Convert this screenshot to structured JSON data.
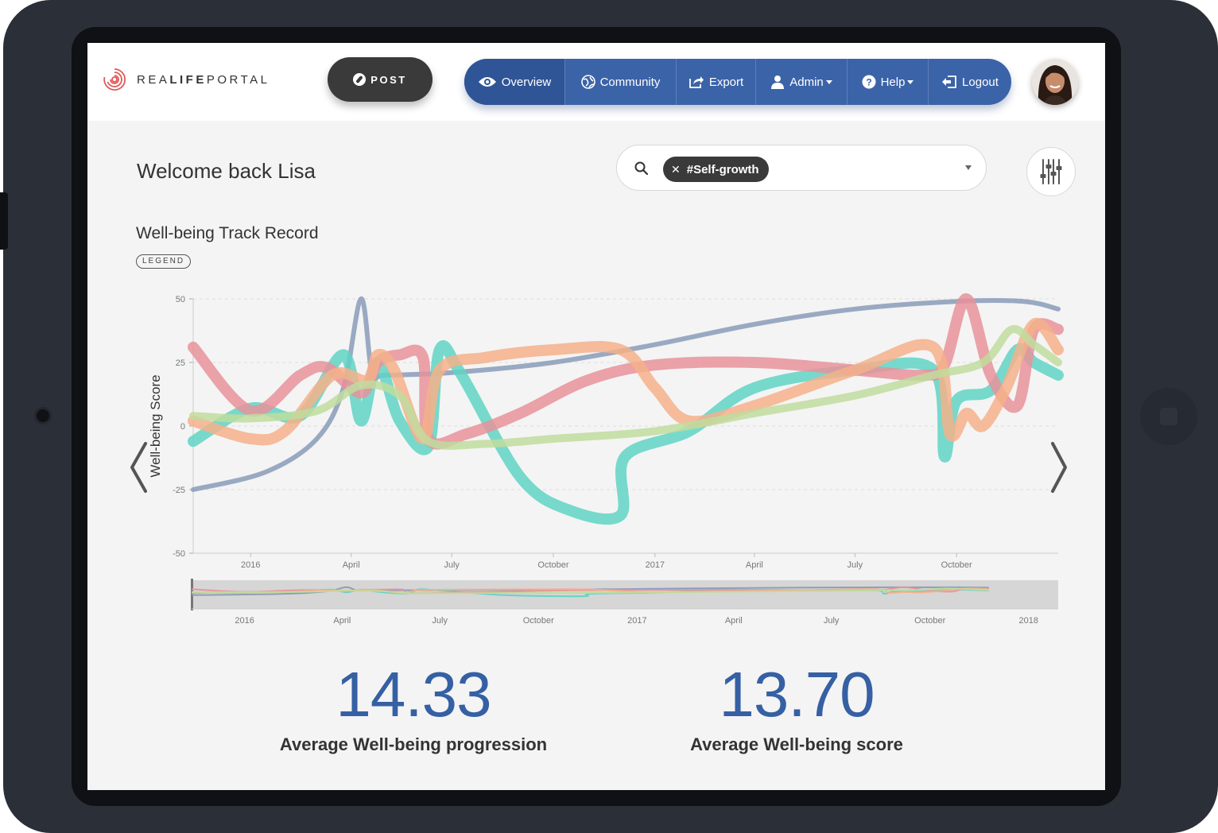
{
  "app": {
    "logo_text_1": "REA",
    "logo_text_2": "LIFE",
    "logo_text_3": "PORTAL",
    "post_label": "POST"
  },
  "nav": [
    {
      "label": "Overview",
      "icon": "eye-icon",
      "dropdown": false,
      "active": true
    },
    {
      "label": "Community",
      "icon": "globe-icon",
      "dropdown": false,
      "active": false
    },
    {
      "label": "Export",
      "icon": "export-icon",
      "dropdown": false,
      "active": false
    },
    {
      "label": "Admin",
      "icon": "user-icon",
      "dropdown": true,
      "active": false
    },
    {
      "label": "Help",
      "icon": "help-icon",
      "dropdown": true,
      "active": false
    },
    {
      "label": "Logout",
      "icon": "logout-icon",
      "dropdown": false,
      "active": false
    }
  ],
  "welcome": "Welcome back Lisa",
  "search": {
    "chip_label": "#Self-growth"
  },
  "chart_section": {
    "title": "Well-being Track Record",
    "legend_label": "LEGEND"
  },
  "chart_data": {
    "type": "line",
    "ylabel": "Well-being Score",
    "xlabel": "",
    "ylim": [
      -50,
      50
    ],
    "y_ticks": [
      50,
      25,
      0,
      -25,
      -50
    ],
    "x_tick_labels": [
      "2016",
      "April",
      "July",
      "October",
      "2017",
      "April",
      "July",
      "October"
    ],
    "navigator_tick_labels": [
      "2016",
      "April",
      "July",
      "October",
      "2017",
      "April",
      "July",
      "October",
      "2018"
    ],
    "grid": "horizontal dashed",
    "series": [
      {
        "color": "#8a9bb8",
        "x": [
          "2015-11-10",
          "2016-01-15",
          "2016-03-01",
          "2016-03-25",
          "2016-04-10",
          "2016-04-20",
          "2016-05-01",
          "2016-07-01",
          "2016-10-01",
          "2017-01-01",
          "2017-04-01",
          "2017-07-01",
          "2017-10-01",
          "2017-12-01",
          "2018-01-01"
        ],
        "y": [
          -25,
          -18,
          -5,
          15,
          50,
          20,
          20,
          21,
          25,
          32,
          40,
          46,
          49,
          49,
          46
        ]
      },
      {
        "color": "#5fd3c4",
        "x": [
          "2015-11-10",
          "2016-01-01",
          "2016-02-15",
          "2016-03-25",
          "2016-04-10",
          "2016-04-25",
          "2016-05-15",
          "2016-06-10",
          "2016-06-20",
          "2016-07-10",
          "2016-09-01",
          "2016-10-15",
          "2016-12-01",
          "2016-12-05",
          "2017-02-01",
          "2017-04-01",
          "2017-07-01",
          "2017-09-10",
          "2017-09-20",
          "2017-10-01",
          "2017-11-01",
          "2017-11-25",
          "2017-12-10",
          "2018-01-01"
        ],
        "y": [
          -6,
          7,
          4,
          28,
          2,
          25,
          2,
          -8,
          30,
          20,
          -20,
          -33,
          -35,
          -12,
          -2,
          15,
          22,
          22,
          -12,
          10,
          14,
          30,
          25,
          20
        ]
      },
      {
        "color": "#e8929a",
        "x": [
          "2015-11-10",
          "2016-01-01",
          "2016-02-15",
          "2016-03-10",
          "2016-04-10",
          "2016-04-25",
          "2016-05-15",
          "2016-06-05",
          "2016-06-10",
          "2016-07-15",
          "2016-09-01",
          "2016-11-01",
          "2017-01-01",
          "2017-04-01",
          "2017-07-01",
          "2017-09-01",
          "2017-09-20",
          "2017-10-10",
          "2017-11-01",
          "2017-11-25",
          "2017-12-10",
          "2018-01-01"
        ],
        "y": [
          31,
          6,
          20,
          23,
          13,
          25,
          28,
          27,
          -5,
          -3,
          5,
          18,
          24,
          25,
          22,
          20,
          24,
          50,
          20,
          8,
          38,
          38
        ]
      },
      {
        "color": "#f5b08a",
        "x": [
          "2015-11-10",
          "2016-01-01",
          "2016-02-01",
          "2016-03-15",
          "2016-04-15",
          "2016-04-25",
          "2016-05-10",
          "2016-06-05",
          "2016-06-20",
          "2016-08-01",
          "2016-10-01",
          "2016-12-01",
          "2017-01-01",
          "2017-02-01",
          "2017-04-01",
          "2017-07-01",
          "2017-09-10",
          "2017-09-25",
          "2017-10-10",
          "2017-10-25",
          "2017-11-15",
          "2017-12-10",
          "2018-01-01"
        ],
        "y": [
          2,
          -5,
          -2,
          20,
          18,
          28,
          22,
          -5,
          22,
          27,
          30,
          30,
          15,
          2,
          8,
          22,
          31,
          -3,
          5,
          0,
          15,
          40,
          30
        ]
      },
      {
        "color": "#bfdc9e",
        "x": [
          "2015-11-10",
          "2016-01-01",
          "2016-03-01",
          "2016-04-10",
          "2016-05-15",
          "2016-06-10",
          "2016-08-01",
          "2016-10-01",
          "2017-01-01",
          "2017-04-01",
          "2017-07-01",
          "2017-09-10",
          "2017-10-25",
          "2017-11-20",
          "2017-12-10",
          "2018-01-01"
        ],
        "y": [
          4,
          3,
          6,
          16,
          12,
          -6,
          -7,
          -5,
          -2,
          5,
          12,
          20,
          25,
          38,
          32,
          25
        ]
      }
    ]
  },
  "stats": [
    {
      "value": "14.33",
      "label": "Average Well-being progression"
    },
    {
      "value": "13.70",
      "label": "Average Well-being score"
    }
  ]
}
